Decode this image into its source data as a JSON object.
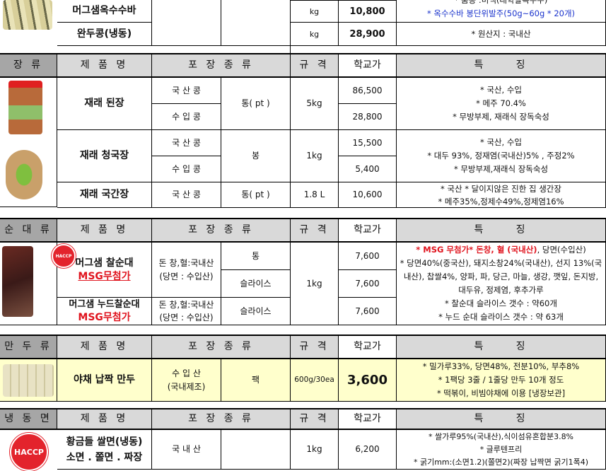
{
  "top": {
    "corn_bar": {
      "name": "머그샘옥수수바",
      "spec": "kg",
      "price": "10,800",
      "feat1": "* 품종 :미백(대학찰옥수수)",
      "feat2": "* 옥수수바 봉단위발주(50g~60g * 20개)"
    },
    "peas": {
      "name": "완두콩(냉동)",
      "spec": "kg",
      "price": "28,900",
      "feat": "* 원산지 : 국내산"
    }
  },
  "headers": {
    "name": "제 품 명",
    "pack": "포 장 종 류",
    "spec": "규 격",
    "price": "학교가",
    "feat": "특     징"
  },
  "jang": {
    "category": "장 류",
    "doenjang": {
      "name": "재래 된장",
      "opt1": "국 산 콩",
      "opt2": "수 입 콩",
      "pack": "통( pt )",
      "spec": "5kg",
      "price1": "86,500",
      "price2": "28,800",
      "feat": [
        "* 국산, 수입",
        "* 메주 70.4%",
        "* 무방부제, 재래식 장독숙성"
      ]
    },
    "cheonggukjang": {
      "name": "재래 청국장",
      "opt1": "국 산 콩",
      "opt2": "수 입 콩",
      "pack": "봉",
      "spec": "1kg",
      "price1": "15,500",
      "price2": "5,400",
      "feat": [
        "* 국산, 수입",
        "* 대두 93%, 정재염(국내산)5% , 주정2%",
        "* 무방부제,재래식 장독숙성"
      ]
    },
    "gukganjang": {
      "name": "재래 국간장",
      "opt1": "국 산 콩",
      "pack": "통( pt )",
      "spec": "1.8 L",
      "price": "10,600",
      "feat": [
        "* 국산  * 달이지않은 진한 집 생간장",
        "* 메주35%,정제수49%,정제염16%"
      ]
    }
  },
  "sundae": {
    "category": "순 대 류",
    "logo": "HACCP",
    "chal": {
      "name": "머그샘 찰순대",
      "msg": "MSG무첨가",
      "origin1": "돈 창,혈:국내산",
      "origin2": "(당면 : 수입산)",
      "pack1": "통",
      "pack2": "슬라이스",
      "price1": "7,600",
      "price2": "7,600"
    },
    "nude": {
      "name": "머그샘 누드찰순대",
      "msg": "MSG무첨가",
      "origin1": "돈 창,혈:국내산",
      "origin2": "(당면 : 수입산)",
      "pack": "슬라이스",
      "price": "7,600"
    },
    "spec": "1kg",
    "feat_red": "* MSG 무첨가* 돈창, 혈 (국내산)",
    "feat_rest": ", 당면(수입산)",
    "feat": [
      "* 당면40%(중국산), 돼지소창24%(국내산), 선지 13%(국내산), 찹쌀4%, 양파, 파, 당근, 마늘, 생강, 깻잎, 돈지방, 대두유, 정제염, 후추가루",
      "* 찰순대 슬라이스 갯수 : 약60개",
      "* 누드 순대 슬라이스 갯수 : 약 63개"
    ]
  },
  "mandu": {
    "category": "만 두 류",
    "name": "야채 납짝 만두",
    "origin1": "수 입 산",
    "origin2": "(국내제조)",
    "pack": "팩",
    "spec": "600g/30ea",
    "price": "3,600",
    "feat": [
      "* 밀가루33%, 당면48%, 전분10%, 부추8%",
      "* 1팩당 3줄 / 1줄당 만두 10개 정도",
      "* 떡볶이, 비빔야채에 이용 [냉장보관]"
    ]
  },
  "noodle": {
    "category": "냉 동 면",
    "logo": "HACCP",
    "name1": "황금들 쌀면(냉동)",
    "name2": "소면 . 쫄면 . 짜장",
    "origin": "국 내 산",
    "spec": "1kg",
    "price": "6,200",
    "feat": [
      "* 쌀가루95%(국내산),식이섬유혼합분3.8%",
      "* 글루텐프리",
      "* 굵기mm:(소면1.2)(쫄면2)(짜장 납짝면 굵기1폭4)"
    ]
  },
  "colors": {
    "header": "#d9d9d9",
    "category": "#a6a6a6",
    "highlight": "#ffffcc",
    "red": "#e0141e",
    "blue": "#1a33cc"
  }
}
